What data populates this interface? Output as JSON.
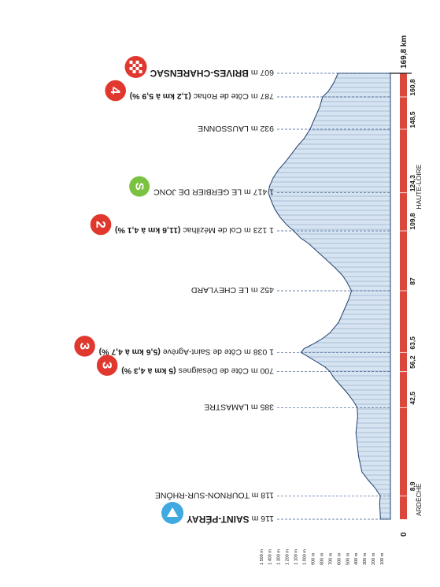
{
  "total_distance_label": "169,8 km",
  "zero_label": "0",
  "colors": {
    "profile_fill": "#d6e4f2",
    "profile_stroke": "#1f3f6e",
    "profile_hatch": "#7e98b8",
    "axis_bar": "#d9483b",
    "guide_line": "#3a5a8a",
    "text": "#1a1a1a",
    "kom_badge": "#e0382e",
    "sprint_badge": "#7cc242",
    "start_badge": "#3fa9e0",
    "finish_badge": "#e0382e"
  },
  "chart_data": {
    "type": "area",
    "orientation": "rotated-90",
    "xlabel": "",
    "ylabel": "",
    "xlim": [
      0,
      169.8
    ],
    "ylim": [
      0,
      1500
    ],
    "y_ticks": [
      "100 m",
      "200 m",
      "300 m",
      "400 m",
      "500 m",
      "600 m",
      "700 m",
      "800 m",
      "900 m",
      "1 000 m",
      "1 100 m",
      "1 200 m",
      "1 300 m",
      "1 400 m",
      "1 500 m"
    ],
    "y_tick_values": [
      100,
      200,
      300,
      400,
      500,
      600,
      700,
      800,
      900,
      1000,
      1100,
      1200,
      1300,
      1400,
      1500
    ],
    "distance_markers": [
      {
        "km": 8.9,
        "label": "8,9"
      },
      {
        "km": 42.5,
        "label": "42,5"
      },
      {
        "km": 56.2,
        "label": "56,2"
      },
      {
        "km": 63.5,
        "label": "63,5"
      },
      {
        "km": 87,
        "label": "87"
      },
      {
        "km": 109.8,
        "label": "109,8"
      },
      {
        "km": 124.3,
        "label": "124,3"
      },
      {
        "km": 148.5,
        "label": "148,5"
      },
      {
        "km": 160.8,
        "label": "160,8"
      }
    ],
    "regions": [
      {
        "label": "ARDÈCHE",
        "km": 0
      },
      {
        "label": "HAUTE-LOIRE",
        "km": 130
      }
    ],
    "profile": [
      [
        0,
        116
      ],
      [
        3,
        120
      ],
      [
        6,
        125
      ],
      [
        8.9,
        118
      ],
      [
        12,
        180
      ],
      [
        15,
        260
      ],
      [
        18,
        330
      ],
      [
        21,
        350
      ],
      [
        24,
        370
      ],
      [
        27,
        380
      ],
      [
        30,
        390
      ],
      [
        33,
        400
      ],
      [
        36,
        390
      ],
      [
        39,
        380
      ],
      [
        42.5,
        385
      ],
      [
        45,
        430
      ],
      [
        48,
        500
      ],
      [
        51,
        580
      ],
      [
        54,
        660
      ],
      [
        56.2,
        700
      ],
      [
        58,
        760
      ],
      [
        60,
        860
      ],
      [
        62,
        960
      ],
      [
        63.5,
        1038
      ],
      [
        65,
        1000
      ],
      [
        67,
        880
      ],
      [
        69,
        780
      ],
      [
        71,
        700
      ],
      [
        73,
        650
      ],
      [
        75,
        600
      ],
      [
        78,
        560
      ],
      [
        81,
        520
      ],
      [
        84,
        480
      ],
      [
        87,
        452
      ],
      [
        90,
        500
      ],
      [
        93,
        560
      ],
      [
        96,
        650
      ],
      [
        99,
        750
      ],
      [
        102,
        850
      ],
      [
        105,
        950
      ],
      [
        107,
        1040
      ],
      [
        109.8,
        1123
      ],
      [
        112,
        1200
      ],
      [
        115,
        1280
      ],
      [
        118,
        1340
      ],
      [
        121,
        1380
      ],
      [
        124.3,
        1417
      ],
      [
        127,
        1400
      ],
      [
        130,
        1360
      ],
      [
        133,
        1300
      ],
      [
        136,
        1220
      ],
      [
        139,
        1150
      ],
      [
        142,
        1080
      ],
      [
        145,
        1000
      ],
      [
        148.5,
        932
      ],
      [
        151,
        900
      ],
      [
        154,
        860
      ],
      [
        157,
        820
      ],
      [
        160.8,
        787
      ],
      [
        163,
        720
      ],
      [
        166,
        660
      ],
      [
        169.8,
        607
      ]
    ],
    "waypoints": [
      {
        "km": 0,
        "elev_label": "116 m",
        "name": "SAINT-PÉRAY",
        "bold": true,
        "badge": "start",
        "badge_text": ""
      },
      {
        "km": 8.9,
        "elev_label": "118 m",
        "name": "TOURNON-SUR-RHÔNE",
        "bold": false,
        "badge": "",
        "badge_text": ""
      },
      {
        "km": 42.5,
        "elev_label": "385 m",
        "name": "LAMASTRE",
        "bold": false,
        "badge": "",
        "badge_text": ""
      },
      {
        "km": 56.2,
        "elev_label": "700 m",
        "name": "Côte de Désaignes",
        "detail": "(5 km à 4,3 %)",
        "bold": false,
        "badge": "kom",
        "badge_text": "3"
      },
      {
        "km": 63.5,
        "elev_label": "1 038 m",
        "name": "Côte de Saint-Agrève",
        "detail": "(5,6 km à 4,7 %)",
        "bold": false,
        "badge": "kom",
        "badge_text": "3"
      },
      {
        "km": 87,
        "elev_label": "452 m",
        "name": "LE CHEYLARD",
        "bold": false,
        "badge": "",
        "badge_text": ""
      },
      {
        "km": 109.8,
        "elev_label": "1 123 m",
        "name": "Col de Mézilhac",
        "detail": "(11,6 km à 4,1 %)",
        "bold": false,
        "badge": "kom",
        "badge_text": "2"
      },
      {
        "km": 124.3,
        "elev_label": "1 417 m",
        "name": "LE GERBIER DE JONC",
        "bold": false,
        "badge": "sprint",
        "badge_text": "S"
      },
      {
        "km": 148.5,
        "elev_label": "932 m",
        "name": "LAUSSONNE",
        "bold": false,
        "badge": "",
        "badge_text": ""
      },
      {
        "km": 160.8,
        "elev_label": "787 m",
        "name": "Côte de Rohac",
        "detail": "(1,2 km à 5,9 %)",
        "bold": false,
        "badge": "kom",
        "badge_text": "4"
      },
      {
        "km": 169.8,
        "elev_label": "607 m",
        "name": "BRIVES-CHARENSAC",
        "bold": true,
        "badge": "finish",
        "badge_text": ""
      }
    ]
  }
}
